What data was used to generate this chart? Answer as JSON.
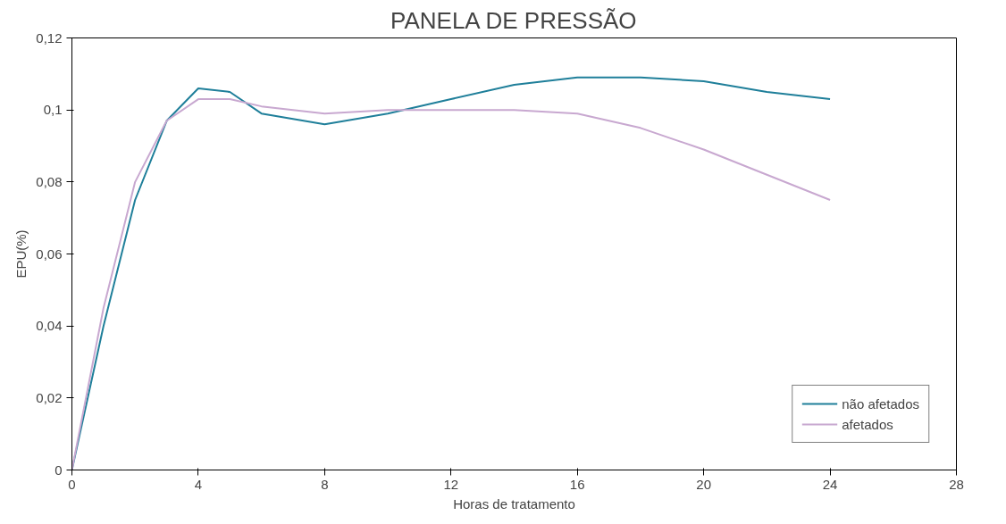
{
  "chart_data": {
    "type": "line",
    "title": "PANELA DE PRESSÃO",
    "xlabel": "Horas de tratamento",
    "ylabel": "EPU(%)",
    "x": [
      0,
      1,
      2,
      3,
      4,
      5,
      6,
      8,
      10,
      12,
      14,
      16,
      18,
      20,
      22,
      24
    ],
    "series": [
      {
        "name": "não afetados",
        "color": "#1f7f9a",
        "values": [
          0,
          0.04,
          0.075,
          0.097,
          0.106,
          0.105,
          0.099,
          0.096,
          0.099,
          0.103,
          0.107,
          0.109,
          0.109,
          0.108,
          0.105,
          0.103
        ]
      },
      {
        "name": "afetados",
        "color": "#c8a8d0",
        "values": [
          0,
          0.045,
          0.08,
          0.097,
          0.103,
          0.103,
          0.101,
          0.099,
          0.1,
          0.1,
          0.1,
          0.099,
          0.095,
          0.089,
          0.082,
          0.075
        ]
      }
    ],
    "xlim": [
      0,
      28
    ],
    "xticks": [
      0,
      4,
      8,
      12,
      16,
      20,
      24,
      28
    ],
    "ylim": [
      0,
      0.12
    ],
    "yticks": [
      0,
      {
        "value": 0.02,
        "label": "0,02"
      },
      {
        "value": 0.04,
        "label": "0,04"
      },
      {
        "value": 0.06,
        "label": "0,06"
      },
      {
        "value": 0.08,
        "label": "0,08"
      },
      {
        "value": 0.1,
        "label": "0,1"
      },
      {
        "value": 0.12,
        "label": "0,12"
      }
    ],
    "legend": "bottom right",
    "grid": false,
    "marker": "none",
    "line_style": "solid"
  }
}
